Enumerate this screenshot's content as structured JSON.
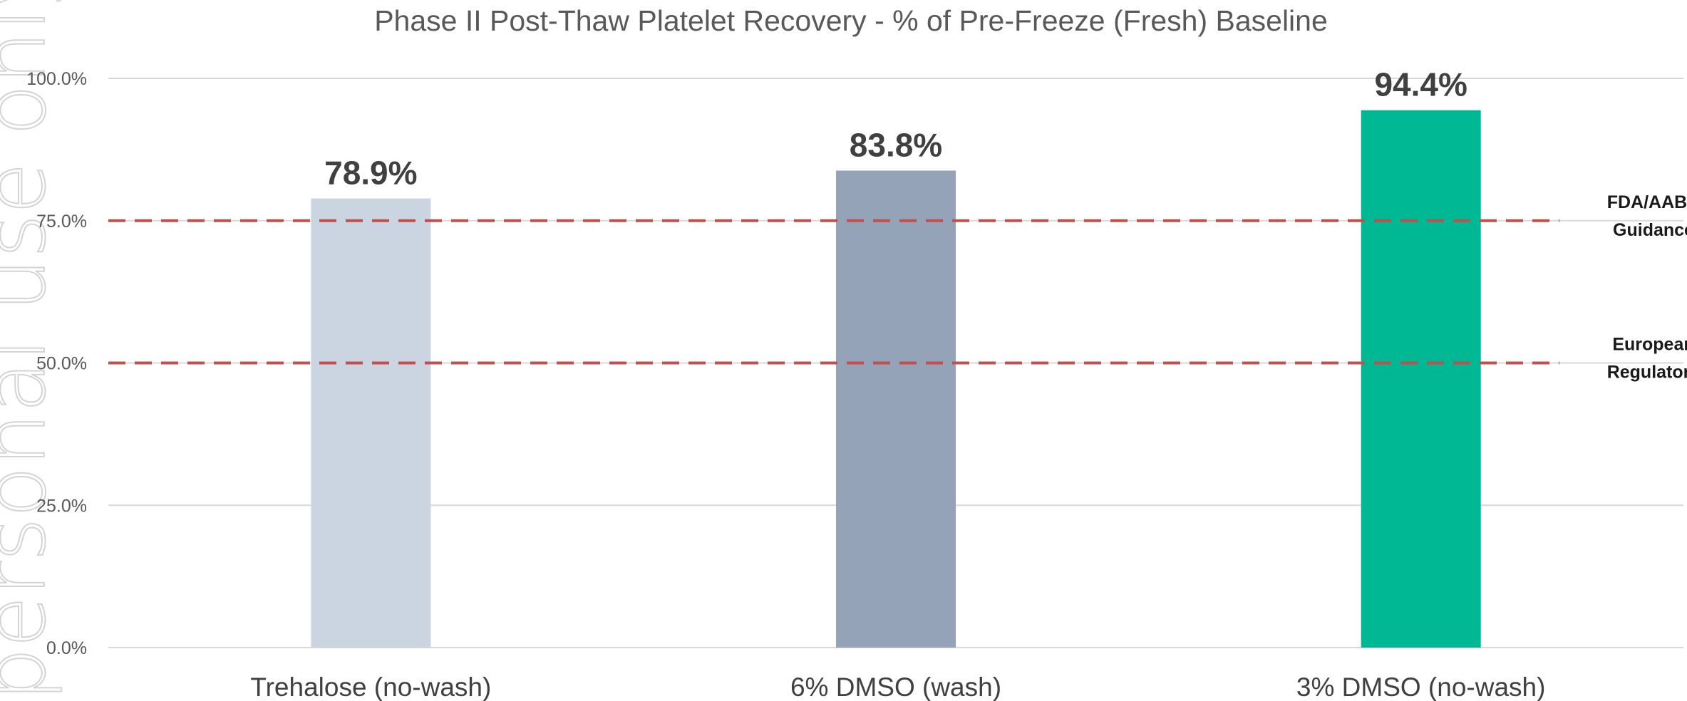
{
  "watermark": "personal use only",
  "chart_data": {
    "type": "bar",
    "title": "Phase II Post-Thaw Platelet Recovery - % of Pre-Freeze (Fresh) Baseline",
    "xlabel": "",
    "ylabel": "",
    "categories": [
      "Trehalose (no-wash)",
      "6% DMSO (wash)",
      "3% DMSO (no-wash)"
    ],
    "values": [
      78.9,
      83.8,
      94.4
    ],
    "data_labels": [
      "78.9%",
      "83.8%",
      "94.4%"
    ],
    "bar_colors": [
      "#CBD5E1",
      "#94A3B8",
      "#00B894"
    ],
    "ylim": [
      0,
      100
    ],
    "yticks": [
      0,
      25,
      50,
      75,
      100
    ],
    "ytick_labels": [
      "0.0%",
      "25.0%",
      "50.0%",
      "75.0%",
      "100.0%"
    ],
    "grid": true,
    "reference_lines": [
      {
        "value": 75,
        "label_lines": [
          "FDA/AABB",
          "Guidance"
        ],
        "color": "#C0504D",
        "style": "dashed"
      },
      {
        "value": 50,
        "label_lines": [
          "European",
          "Regulatory"
        ],
        "color": "#C0504D",
        "style": "dashed"
      }
    ]
  }
}
